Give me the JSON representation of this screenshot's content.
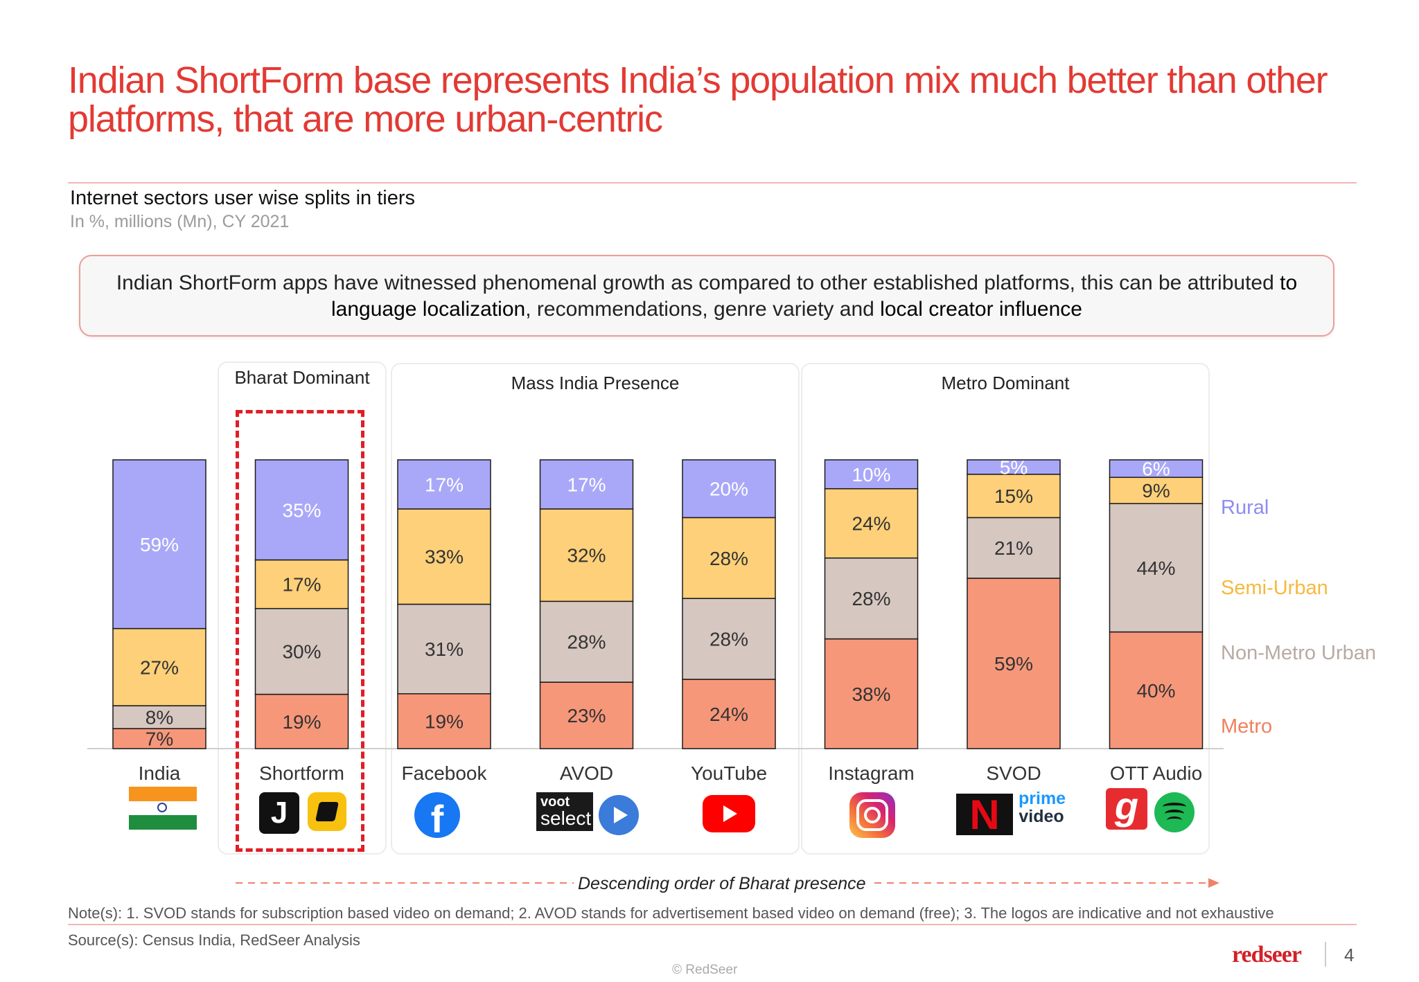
{
  "title": "Indian ShortForm base represents India’s population mix much better than other platforms, that are more urban-centric",
  "subtitle": "Internet sectors user wise splits in tiers",
  "unit_note": "In %, millions (Mn), CY 2021",
  "callout": {
    "part1": "Indian ShortForm apps have witnessed phenomenal growth as compared to other established platforms, this can be attributed ",
    "bold1": "to language localization",
    "part2": ", recommendations, genre variety and ",
    "bold2": "local creator influence"
  },
  "groups": {
    "bharat": "Bharat Dominant",
    "mass": "Mass India Presence",
    "metro": "Metro Dominant"
  },
  "arrow_label": "Descending order of Bharat presence",
  "note": "Note(s): 1. SVOD stands for subscription based video on demand; 2. AVOD stands for advertisement based video on demand (free); 3. The logos are indicative and not exhaustive",
  "source": "Source(s): Census India, RedSeer Analysis",
  "copyright": "© RedSeer",
  "brand": "redseer",
  "page_number": "4",
  "logos": {
    "voot_line1": "voot",
    "voot_line2": "select",
    "netflix": "N",
    "prime_line1": "prime",
    "prime_line2": "video",
    "gaana": "g"
  },
  "colors": {
    "metro": "#f7977a",
    "non_metro_urban": "#d6c7c0",
    "semi_urban": "#fdd079",
    "rural": "#a9a8f8",
    "accent_red": "#e23a34"
  },
  "chart_data": {
    "type": "bar",
    "stacked": true,
    "categories": [
      "India",
      "Shortform",
      "Facebook",
      "AVOD",
      "YouTube",
      "Instagram",
      "SVOD",
      "OTT Audio"
    ],
    "series": [
      {
        "name": "Metro",
        "values": [
          7,
          19,
          19,
          23,
          24,
          38,
          59,
          40
        ]
      },
      {
        "name": "Non-Metro Urban",
        "values": [
          8,
          30,
          31,
          28,
          28,
          28,
          21,
          44
        ]
      },
      {
        "name": "Semi-Urban",
        "values": [
          27,
          17,
          33,
          32,
          28,
          24,
          15,
          9
        ]
      },
      {
        "name": "Rural",
        "values": [
          59,
          35,
          17,
          17,
          20,
          10,
          5,
          6
        ]
      }
    ],
    "legend_position": "right",
    "ylim": [
      0,
      100
    ]
  }
}
